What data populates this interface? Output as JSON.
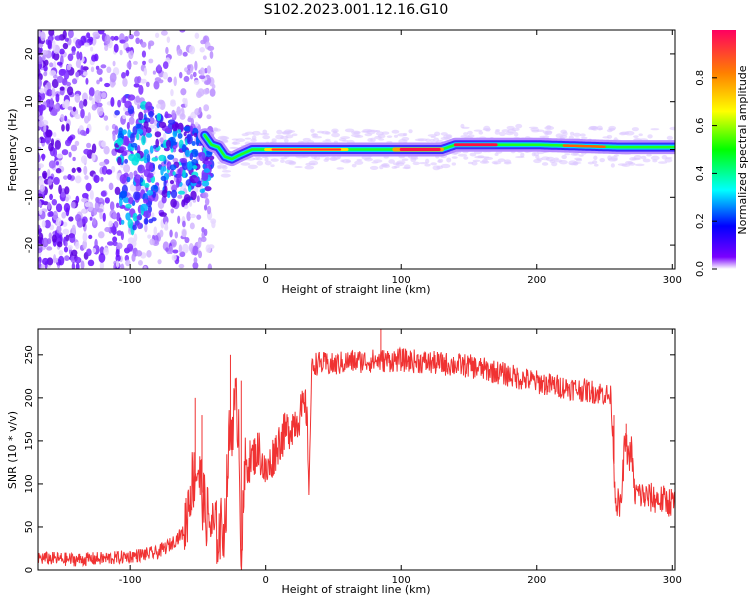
{
  "title": "S102.2023.001.12.16.G10",
  "chart_data": [
    {
      "type": "heatmap",
      "xlabel": "Height of straight line (km)",
      "ylabel": "Frequency (Hz)",
      "xlim": [
        -168,
        302
      ],
      "ylim": [
        -25,
        25
      ],
      "xticks": [
        -100,
        0,
        100,
        200,
        300
      ],
      "yticks": [
        -20,
        -10,
        0,
        10,
        20
      ],
      "ridge": [
        {
          "x": -45,
          "y": 3.0
        },
        {
          "x": -40,
          "y": 1.0
        },
        {
          "x": -35,
          "y": 0.5
        },
        {
          "x": -30,
          "y": -1.5
        },
        {
          "x": -25,
          "y": -2.0
        },
        {
          "x": -18,
          "y": -1.0
        },
        {
          "x": -10,
          "y": 0.0
        },
        {
          "x": 0,
          "y": 0.0
        },
        {
          "x": 60,
          "y": 0.0
        },
        {
          "x": 95,
          "y": 0.0
        },
        {
          "x": 130,
          "y": 0.0
        },
        {
          "x": 140,
          "y": 1.0
        },
        {
          "x": 170,
          "y": 1.0
        },
        {
          "x": 200,
          "y": 1.0
        },
        {
          "x": 260,
          "y": 0.5
        },
        {
          "x": 302,
          "y": 0.5
        }
      ],
      "colorbar": {
        "label": "Normalized spectral amplitude",
        "range": [
          0,
          1
        ],
        "ticks": [
          "0.0",
          "0.2",
          "0.4",
          "0.6",
          "0.8"
        ]
      }
    },
    {
      "type": "line",
      "xlabel": "Height of straight line (km)",
      "ylabel": "SNR (10 * v/v)",
      "xlim": [
        -168,
        302
      ],
      "ylim": [
        0,
        280
      ],
      "xticks": [
        -100,
        0,
        100,
        200,
        300
      ],
      "yticks": [
        0,
        50,
        100,
        150,
        200,
        250
      ],
      "color": "#f03232",
      "series": [
        {
          "x": [
            -168,
            -140,
            -110,
            -90,
            -80,
            -70,
            -60,
            -55,
            -50,
            -45,
            -40,
            -35,
            -30,
            -27,
            -25,
            -22,
            -20,
            -18,
            -15,
            -10,
            -5,
            0,
            5,
            10,
            15,
            20,
            25,
            30,
            32,
            34,
            36,
            40,
            50,
            60,
            80,
            100,
            120,
            150,
            170,
            190,
            210,
            230,
            250,
            255,
            258,
            262,
            265,
            268,
            270,
            272,
            280,
            290,
            302
          ],
          "y": [
            14,
            12,
            14,
            18,
            20,
            30,
            45,
            100,
            120,
            70,
            50,
            40,
            55,
            150,
            170,
            190,
            175,
            10,
            120,
            130,
            140,
            110,
            130,
            150,
            160,
            170,
            180,
            190,
            100,
            235,
            240,
            240,
            238,
            242,
            243,
            244,
            241,
            237,
            230,
            222,
            215,
            210,
            205,
            200,
            85,
            70,
            150,
            130,
            140,
            90,
            85,
            82,
            78
          ],
          "spike_top": [
            {
              "x": -52,
              "y": 200
            },
            {
              "x": -47,
              "y": 180
            },
            {
              "x": -26,
              "y": 250
            },
            {
              "x": -18,
              "y": 220
            },
            {
              "x": 85,
              "y": 280
            },
            {
              "x": 257,
              "y": 180
            },
            {
              "x": 266,
              "y": 170
            }
          ]
        }
      ]
    }
  ]
}
